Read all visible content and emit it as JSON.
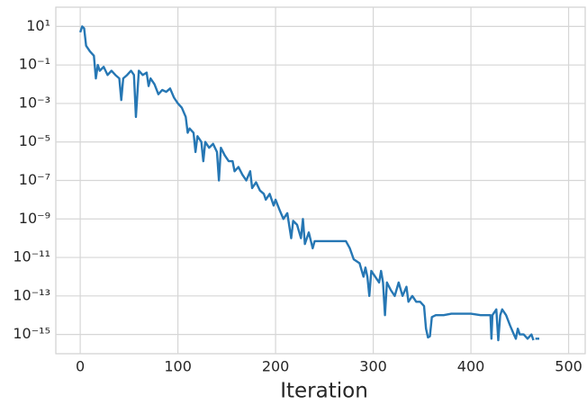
{
  "chart_data": {
    "type": "line",
    "xlabel": "Iteration",
    "color": "#2677b4",
    "log_y": true,
    "grid": true,
    "xlim": [
      -25,
      517
    ],
    "xticks": [
      0,
      100,
      200,
      300,
      400,
      500
    ],
    "ylim": [
      1e-16,
      100
    ],
    "yticks": [
      {
        "value": 10,
        "label": "10¹"
      },
      {
        "value": 0.1,
        "label": "10⁻¹"
      },
      {
        "value": 0.001,
        "label": "10⁻³"
      },
      {
        "value": 1e-05,
        "label": "10⁻⁵"
      },
      {
        "value": 1e-07,
        "label": "10⁻⁷"
      },
      {
        "value": 1e-09,
        "label": "10⁻⁹"
      },
      {
        "value": 1e-11,
        "label": "10⁻¹¹"
      },
      {
        "value": 1e-13,
        "label": "10⁻¹³"
      },
      {
        "value": 1e-15,
        "label": "10⁻¹⁵"
      }
    ],
    "x": [
      0,
      2,
      4,
      6,
      10,
      14,
      16,
      18,
      20,
      24,
      28,
      32,
      36,
      40,
      42,
      44,
      48,
      52,
      55,
      57,
      60,
      64,
      68,
      70,
      72,
      76,
      80,
      84,
      88,
      92,
      96,
      100,
      104,
      108,
      110,
      112,
      116,
      118,
      120,
      124,
      126,
      128,
      132,
      136,
      140,
      142,
      144,
      148,
      152,
      156,
      158,
      162,
      166,
      170,
      174,
      176,
      180,
      184,
      188,
      190,
      194,
      198,
      200,
      204,
      208,
      212,
      216,
      218,
      222,
      226,
      228,
      230,
      234,
      238,
      240,
      250,
      260,
      272,
      276,
      280,
      286,
      290,
      292,
      294,
      296,
      298,
      302,
      306,
      308,
      310,
      312,
      314,
      318,
      322,
      326,
      330,
      334,
      336,
      340,
      344,
      348,
      352,
      354,
      356,
      358,
      360,
      364,
      372,
      380,
      390,
      400,
      410,
      418,
      420,
      421,
      422,
      426,
      428,
      430,
      432,
      436,
      440,
      444,
      446,
      448,
      450,
      454,
      458,
      462,
      464,
      465,
      466,
      470
    ],
    "values": [
      5,
      10,
      8,
      1,
      0.5,
      0.3,
      0.02,
      0.1,
      0.05,
      0.08,
      0.03,
      0.05,
      0.03,
      0.02,
      0.0015,
      0.02,
      0.03,
      0.05,
      0.03,
      0.0002,
      0.05,
      0.03,
      0.04,
      0.008,
      0.02,
      0.01,
      0.003,
      0.005,
      0.004,
      0.006,
      0.002,
      0.001,
      0.0006,
      0.0002,
      3e-05,
      5e-05,
      3e-05,
      3e-06,
      2e-05,
      1e-05,
      1e-06,
      1e-05,
      5e-06,
      8e-06,
      3e-06,
      1e-07,
      5e-06,
      2e-06,
      1e-06,
      1e-06,
      3e-07,
      5e-07,
      2e-07,
      1e-07,
      3e-07,
      4e-08,
      8e-08,
      3e-08,
      2e-08,
      1e-08,
      2e-08,
      5e-09,
      1e-08,
      3e-09,
      1e-09,
      2e-09,
      1e-10,
      8e-10,
      5e-10,
      1e-10,
      1e-09,
      5e-11,
      2e-10,
      3e-11,
      7e-11,
      7e-11,
      7e-11,
      7e-11,
      3e-11,
      8e-12,
      5e-12,
      1e-12,
      3e-12,
      1e-12,
      1e-13,
      2e-12,
      1e-12,
      5e-13,
      2e-12,
      5e-13,
      1e-14,
      5e-13,
      2e-13,
      1e-13,
      5e-13,
      1e-13,
      3e-13,
      5e-14,
      1e-13,
      5e-14,
      5e-14,
      3e-14,
      2e-15,
      7e-16,
      8e-16,
      8e-15,
      1e-14,
      1e-14,
      1.2e-14,
      1.2e-14,
      1.2e-14,
      1e-14,
      1e-14,
      1e-14,
      6e-16,
      1e-14,
      2e-14,
      5e-16,
      1e-14,
      2e-14,
      1e-14,
      3e-15,
      1e-15,
      6e-16,
      2e-15,
      1e-15,
      1e-15,
      6e-16,
      1e-15,
      5e-16,
      null,
      6e-16,
      6e-16
    ]
  }
}
